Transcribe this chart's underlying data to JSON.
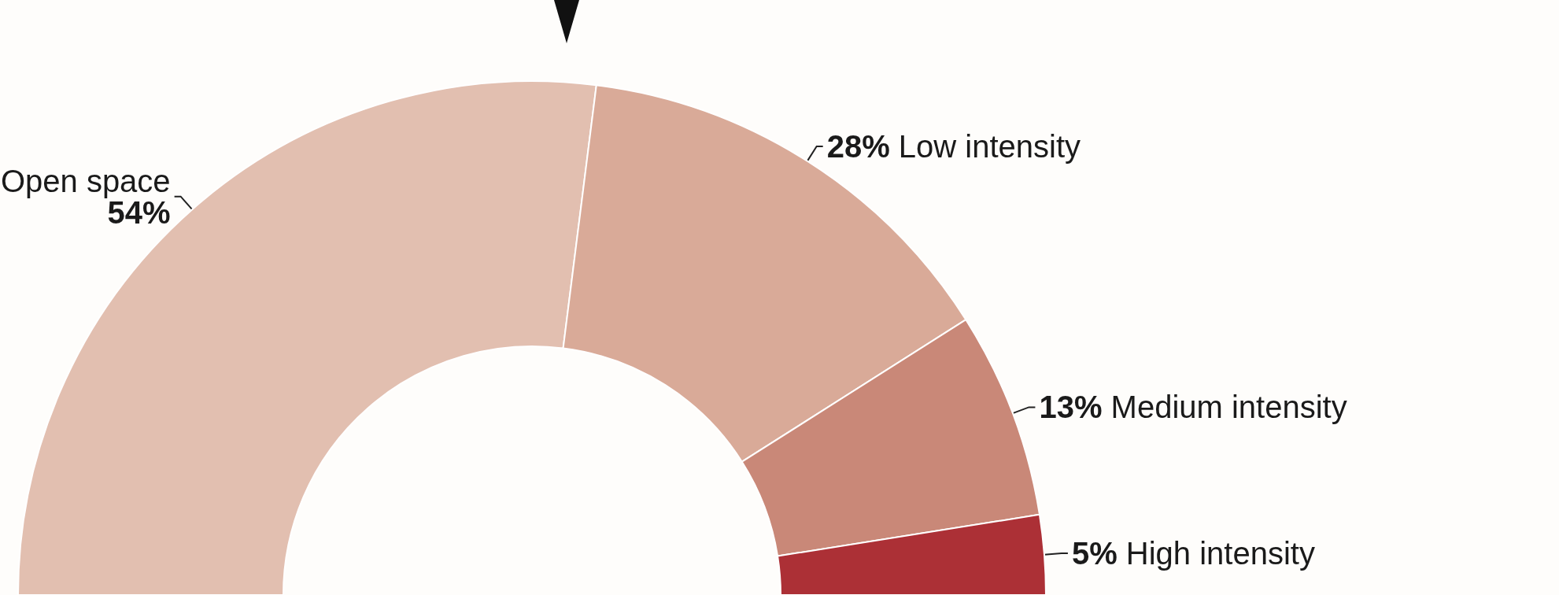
{
  "chart_data": {
    "type": "donut",
    "categories": [
      "Open space",
      "Low intensity",
      "Medium intensity",
      "High intensity"
    ],
    "values": [
      54,
      28,
      13,
      5
    ],
    "value_labels": [
      "54%",
      "28%",
      "13%",
      "5%"
    ],
    "colors": [
      "#e2bfb0",
      "#d9aa98",
      "#c98878",
      "#ac3036"
    ]
  }
}
